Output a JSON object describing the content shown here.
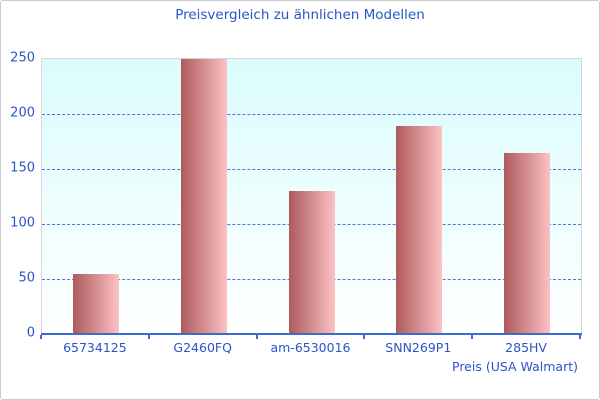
{
  "title": "Preisvergleich zu ähnlichen Modellen",
  "chart_data": {
    "type": "bar",
    "title": "Preisvergleich zu ähnlichen Modellen",
    "categories": [
      "65734125",
      "G2460FQ",
      "am-6530016",
      "SNN269P1",
      "285HV"
    ],
    "values": [
      55,
      250,
      130,
      189,
      165
    ],
    "xlabel": "Preis (USA Walmart)",
    "ylabel": "",
    "ylim": [
      0,
      250
    ],
    "yticks": [
      0,
      50,
      100,
      150,
      200,
      250
    ],
    "grid": "horizontal-dashed",
    "legend": "none",
    "colors": {
      "accent_text": "#2a55c8",
      "axis": "#3a6bd0",
      "gridline": "#3a6bd0",
      "bar_gradient_left": "#ae5a5c",
      "bar_gradient_right": "#fcc2c3",
      "plot_bg_top": "#dafcfe",
      "plot_bg_bottom": "#ffffff",
      "frame_border": "#cccccc"
    }
  }
}
